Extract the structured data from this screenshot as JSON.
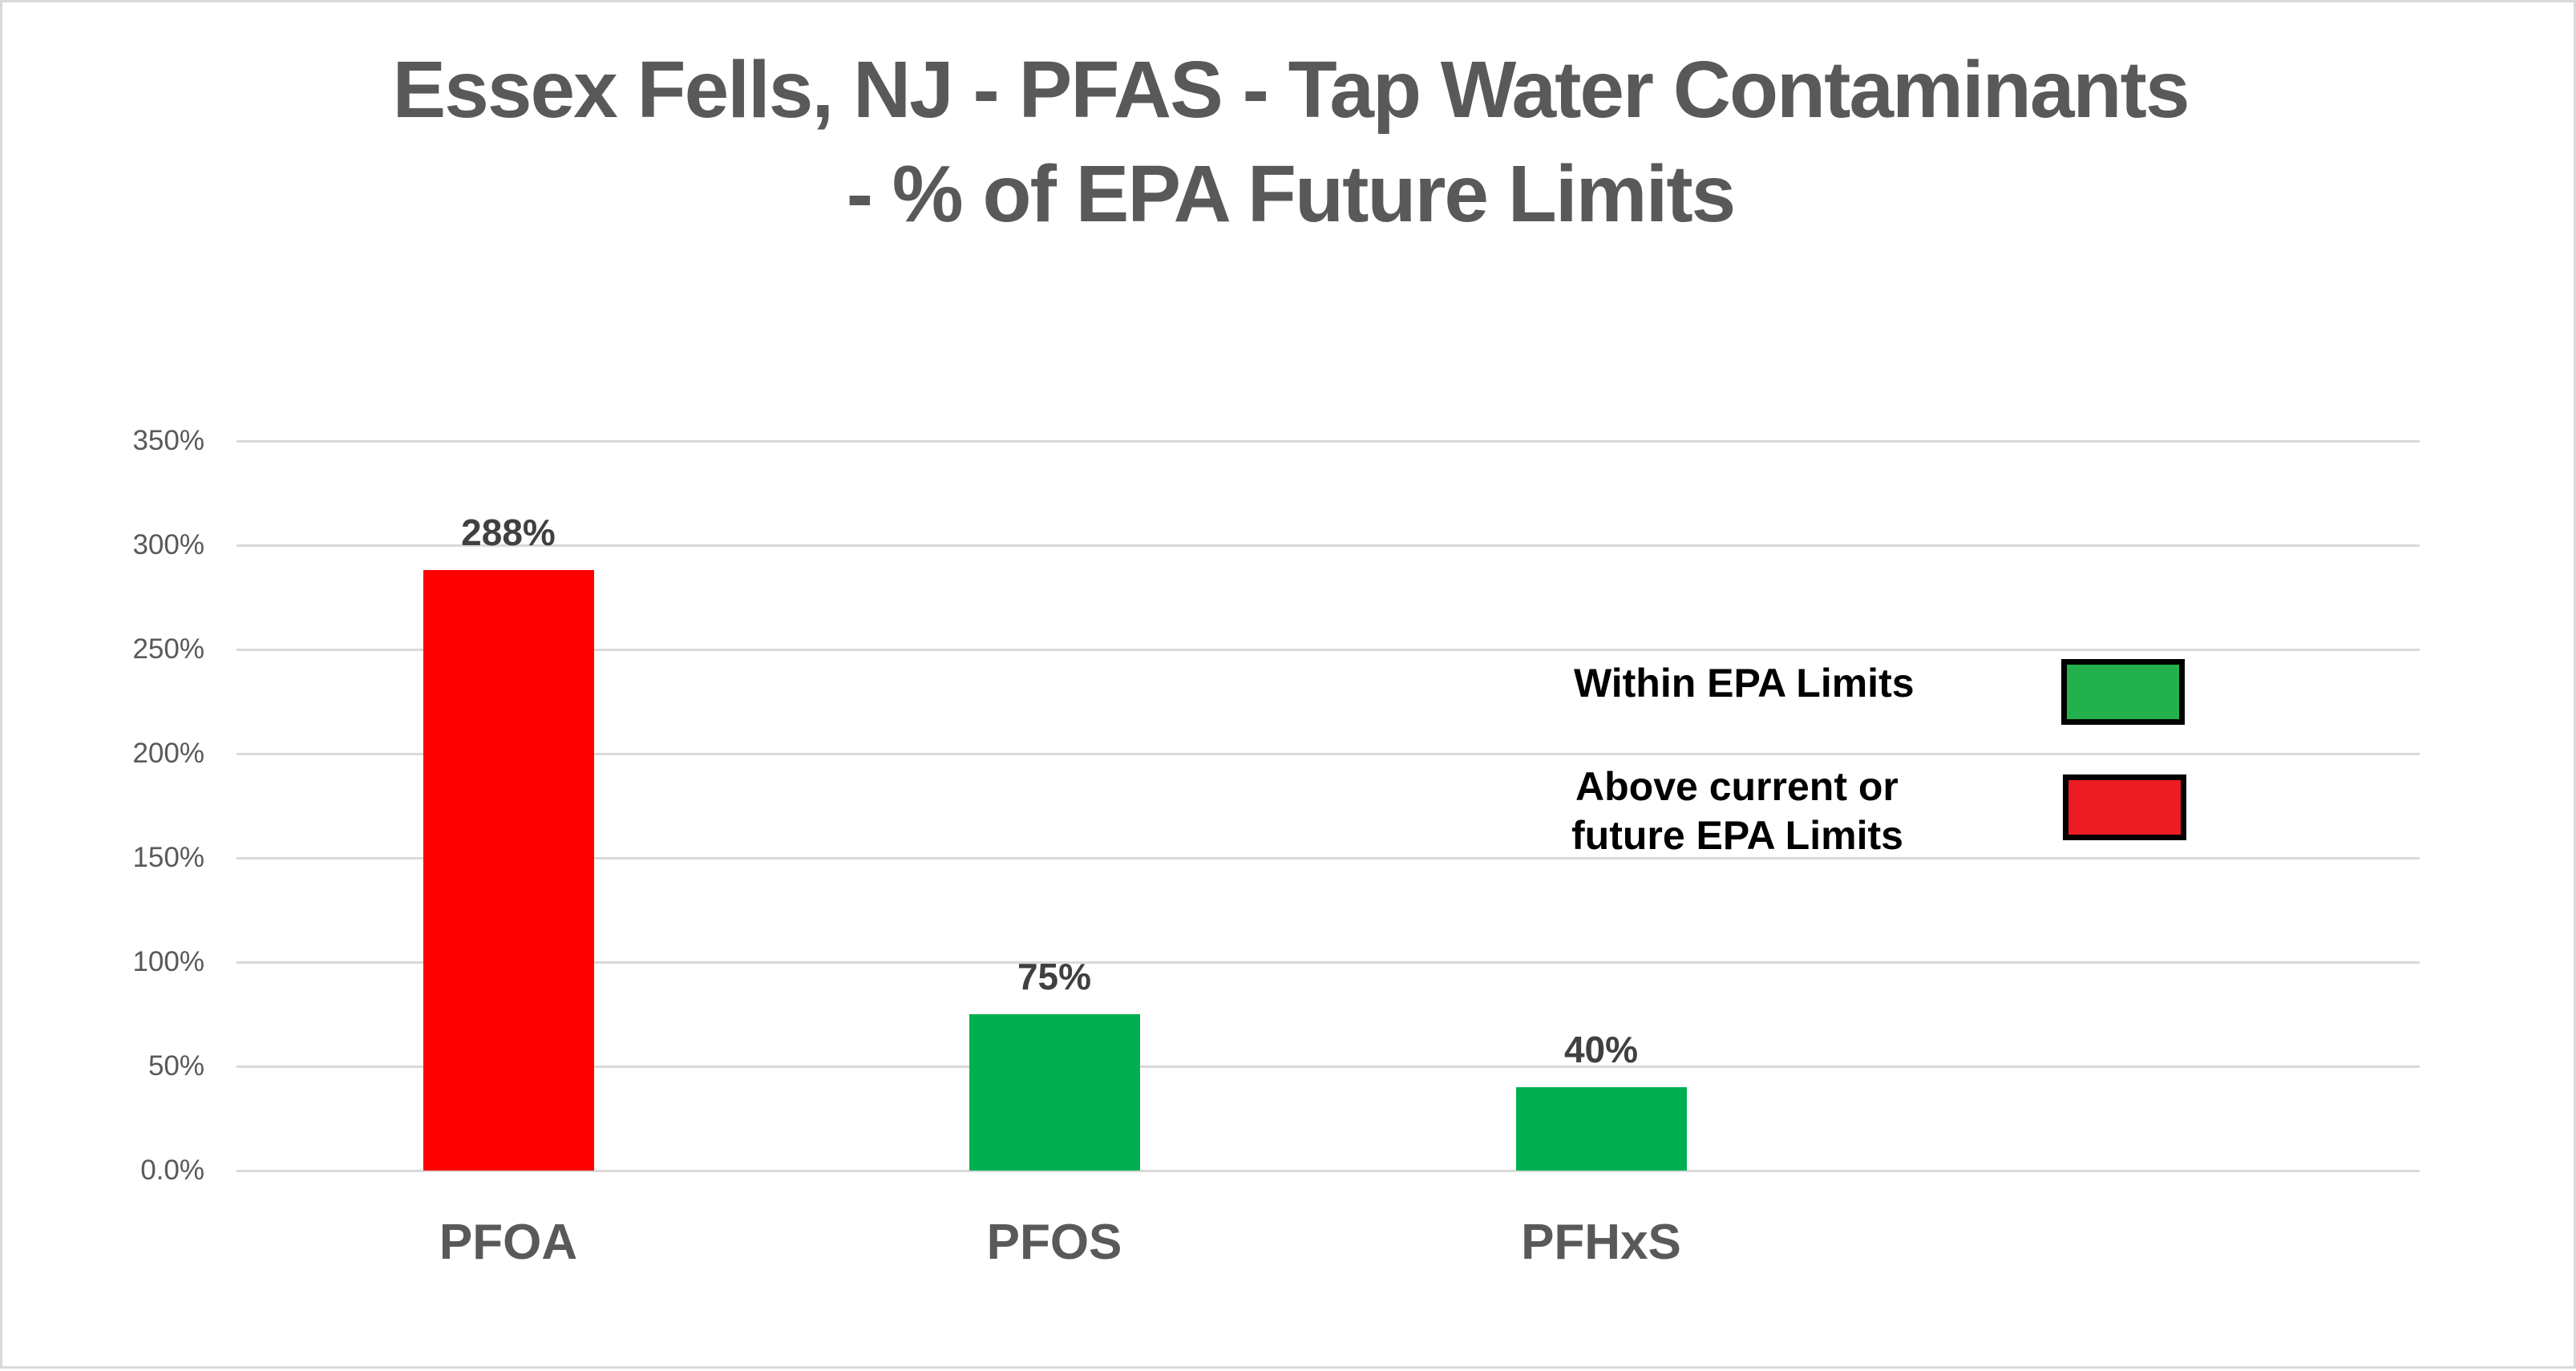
{
  "title": {
    "line1": "Essex Fells, NJ - PFAS - Tap Water Contaminants",
    "line2": "- % of EPA Future Limits"
  },
  "y_axis": {
    "ticks": [
      "350%",
      "300%",
      "250%",
      "200%",
      "150%",
      "100%",
      "50%",
      "0.0%"
    ]
  },
  "bars": [
    {
      "category": "PFOA",
      "value": 288,
      "label": "288%",
      "color": "#FF0000"
    },
    {
      "category": "PFOS",
      "value": 75,
      "label": "75%",
      "color": "#00B050"
    },
    {
      "category": "PFHxS",
      "value": 40,
      "label": "40%",
      "color": "#00B050"
    }
  ],
  "legend": {
    "items": [
      {
        "label": "Within  EPA Limits",
        "color": "#22B14C"
      },
      {
        "label_line1": "Above current or",
        "label_line2": "future EPA Limits",
        "color": "#ED1C24"
      }
    ]
  },
  "chart_data": {
    "type": "bar",
    "title": "Essex Fells, NJ - PFAS - Tap Water Contaminants - % of EPA Future Limits",
    "categories": [
      "PFOA",
      "PFOS",
      "PFHxS"
    ],
    "values": [
      288,
      75,
      40
    ],
    "data_labels": [
      "288%",
      "75%",
      "40%"
    ],
    "bar_colors": [
      "#FF0000",
      "#00B050",
      "#00B050"
    ],
    "xlabel": "",
    "ylabel": "",
    "ylim": [
      0,
      350
    ],
    "y_tick_step": 50,
    "y_tick_labels": [
      "0.0%",
      "50%",
      "100%",
      "150%",
      "200%",
      "250%",
      "300%",
      "350%"
    ],
    "grid": true,
    "legend": [
      {
        "label": "Within EPA Limits",
        "color": "#22B14C"
      },
      {
        "label": "Above current or future EPA Limits",
        "color": "#ED1C24"
      }
    ],
    "legend_position": "right-inside"
  }
}
